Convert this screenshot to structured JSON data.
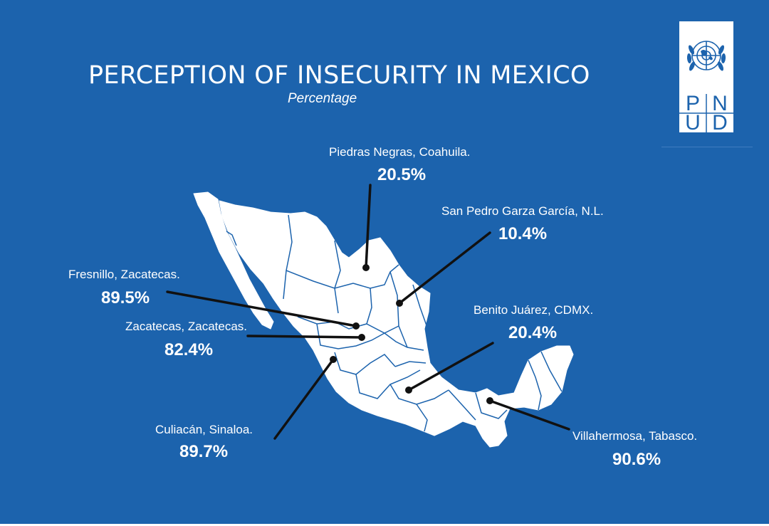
{
  "title": "PERCEPTION OF INSECURITY IN MEXICO",
  "subtitle": "Percentage",
  "logo": {
    "letters": [
      "P",
      "N",
      "U",
      "D"
    ],
    "emblem": "un-emblem-icon"
  },
  "colors": {
    "background": "#1c63ad",
    "map": "#ffffff",
    "border": "#1c63ad",
    "leader": "#111111"
  },
  "map_points": [
    {
      "city": "Piedras Negras, Coahuila.",
      "value": "20.5%",
      "percent": 20.5
    },
    {
      "city": "San Pedro Garza García, N.L.",
      "value": "10.4%",
      "percent": 10.4
    },
    {
      "city": "Fresnillo, Zacatecas.",
      "value": "89.5%",
      "percent": 89.5
    },
    {
      "city": "Zacatecas, Zacatecas.",
      "value": "82.4%",
      "percent": 82.4
    },
    {
      "city": "Benito Juárez, CDMX.",
      "value": "20.4%",
      "percent": 20.4
    },
    {
      "city": "Culiacán, Sinaloa.",
      "value": "89.7%",
      "percent": 89.7
    },
    {
      "city": "Villahermosa, Tabasco.",
      "value": "90.6%",
      "percent": 90.6
    }
  ]
}
